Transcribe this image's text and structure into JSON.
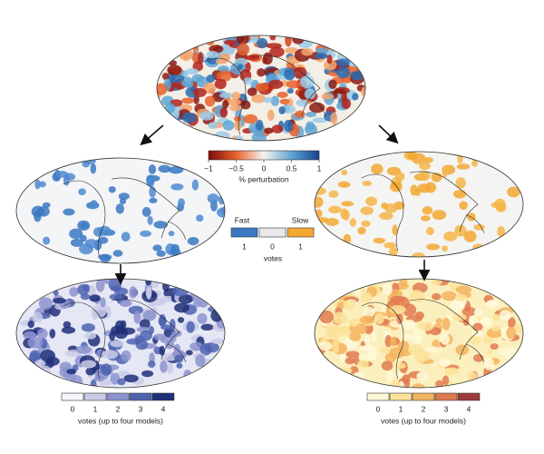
{
  "top_colorbar": {
    "ticks": [
      {
        "value": -1,
        "label": "−1"
      },
      {
        "value": -0.5,
        "label": "−0.5"
      },
      0,
      0.5,
      1
    ],
    "lim": [
      -1,
      1
    ],
    "label": "% perturbation"
  },
  "vote_key": {
    "fast": "Fast",
    "slow": "Slow",
    "boxes": [
      {
        "label": "1",
        "color": "#3a78c2"
      },
      {
        "label": "0",
        "color": "#e8e8e8"
      },
      {
        "label": "1",
        "color": "#f2a833"
      }
    ],
    "label": "votes"
  },
  "fast_colorbar": {
    "ticks": [
      "0",
      "1",
      "2",
      "3",
      "4"
    ],
    "colors": [
      "#f7f7fb",
      "#c9cbe8",
      "#8c93cf",
      "#4e63b0",
      "#1f2f78"
    ],
    "label": "votes (up to four models)"
  },
  "slow_colorbar": {
    "ticks": [
      "0",
      "1",
      "2",
      "3",
      "4"
    ],
    "colors": [
      "#fff9d9",
      "#fbe39a",
      "#f3b45f",
      "#e07a50",
      "#9c3a3a"
    ],
    "label": "votes (up to four models)"
  }
}
